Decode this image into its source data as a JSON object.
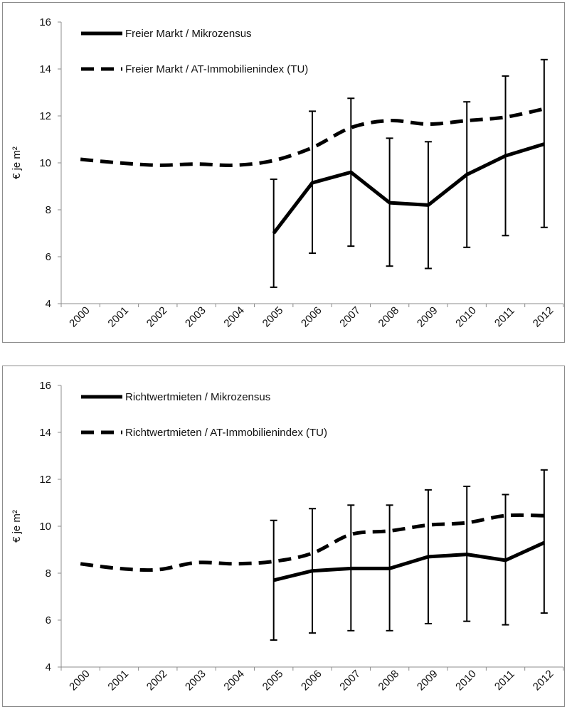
{
  "chart_data": [
    {
      "type": "line",
      "title": "",
      "xlabel": "",
      "ylabel": "€ je m²",
      "ylim": [
        4,
        16
      ],
      "yticks": [
        4,
        6,
        8,
        10,
        12,
        14,
        16
      ],
      "categories": [
        "2000",
        "2001",
        "2002",
        "2003",
        "2004",
        "2005",
        "2006",
        "2007",
        "2008",
        "2009",
        "2010",
        "2011",
        "2012"
      ],
      "grid": false,
      "legend_position": "top-left",
      "series": [
        {
          "name": "Freier Markt / Mikrozensus",
          "style": "solid",
          "color": "#000000",
          "values": [
            null,
            null,
            null,
            null,
            null,
            7.0,
            9.15,
            9.6,
            8.3,
            8.2,
            9.5,
            10.3,
            10.8
          ],
          "error_low": [
            null,
            null,
            null,
            null,
            null,
            4.7,
            6.15,
            6.45,
            5.6,
            5.5,
            6.4,
            6.9,
            7.25
          ],
          "error_high": [
            null,
            null,
            null,
            null,
            null,
            9.3,
            12.2,
            12.75,
            11.05,
            10.9,
            12.6,
            13.7,
            14.4
          ]
        },
        {
          "name": "Freier Markt / AT-Immobilienindex (TU)",
          "style": "dashed",
          "color": "#000000",
          "values": [
            10.15,
            10.0,
            9.9,
            9.95,
            9.9,
            10.1,
            10.65,
            11.5,
            11.8,
            11.65,
            11.8,
            11.95,
            12.3
          ]
        }
      ]
    },
    {
      "type": "line",
      "title": "",
      "xlabel": "",
      "ylabel": "€ je m²",
      "ylim": [
        4,
        16
      ],
      "yticks": [
        4,
        6,
        8,
        10,
        12,
        14,
        16
      ],
      "categories": [
        "2000",
        "2001",
        "2002",
        "2003",
        "2004",
        "2005",
        "2006",
        "2007",
        "2008",
        "2009",
        "2010",
        "2011",
        "2012"
      ],
      "grid": false,
      "legend_position": "top-left",
      "series": [
        {
          "name": "Richtwertmieten / Mikrozensus",
          "style": "solid",
          "color": "#000000",
          "values": [
            null,
            null,
            null,
            null,
            null,
            7.7,
            8.1,
            8.2,
            8.2,
            8.7,
            8.8,
            8.55,
            9.3
          ],
          "error_low": [
            null,
            null,
            null,
            null,
            null,
            5.15,
            5.45,
            5.55,
            5.55,
            5.85,
            5.95,
            5.8,
            6.3
          ],
          "error_high": [
            null,
            null,
            null,
            null,
            null,
            10.25,
            10.75,
            10.9,
            10.9,
            11.55,
            11.7,
            11.35,
            12.4
          ]
        },
        {
          "name": "Richtwertmieten / AT-Immobilienindex (TU)",
          "style": "dashed",
          "color": "#000000",
          "values": [
            8.4,
            8.2,
            8.15,
            8.45,
            8.4,
            8.5,
            8.85,
            9.65,
            9.8,
            10.05,
            10.15,
            10.45,
            10.45
          ]
        }
      ]
    }
  ]
}
